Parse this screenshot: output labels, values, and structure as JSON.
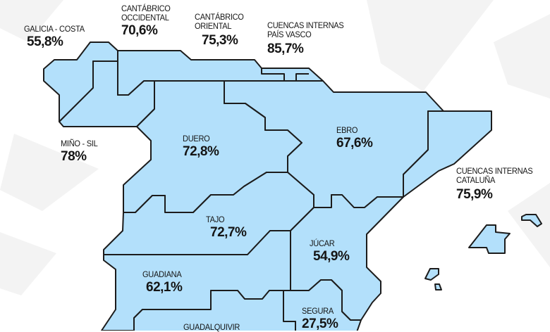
{
  "map": {
    "fill_color": "#b3e0fb",
    "border_color": "#1c1c1c",
    "basins": [
      {
        "id": "galicia",
        "name": "GALICIA - COSTA",
        "value": "55,8%"
      },
      {
        "id": "cocc",
        "name": "CANTÁBRICO\nOCCIDENTAL",
        "value": "70,6%"
      },
      {
        "id": "cori",
        "name": "CANTÁBRICO\nORIENTAL",
        "value": "75,3%"
      },
      {
        "id": "vasco",
        "name": "CUENCAS INTERNAS\nPAÍS VASCO",
        "value": "85,7%"
      },
      {
        "id": "mino",
        "name": "MIÑO - SIL",
        "value": "78%"
      },
      {
        "id": "duero",
        "name": "DUERO",
        "value": "72,8%"
      },
      {
        "id": "ebro",
        "name": "EBRO",
        "value": "67,6%"
      },
      {
        "id": "cat",
        "name": "CUENCAS INTERNAS\nCATALUÑA",
        "value": "75,9%"
      },
      {
        "id": "tajo",
        "name": "TAJO",
        "value": "72,7%"
      },
      {
        "id": "jucar",
        "name": "JÚCAR",
        "value": "54,9%"
      },
      {
        "id": "guadiana",
        "name": "GUADIANA",
        "value": "62,1%"
      },
      {
        "id": "segura",
        "name": "SEGURA",
        "value": "27,5%"
      },
      {
        "id": "guadalquivir",
        "name": "GUADALQUIVIR",
        "value": ""
      }
    ]
  }
}
